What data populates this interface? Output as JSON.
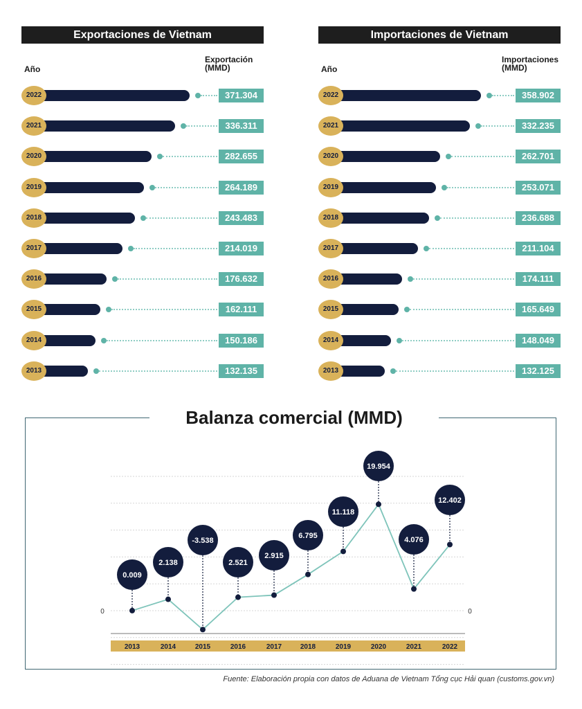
{
  "colors": {
    "navy": "#131d3d",
    "gold": "#d9b25a",
    "teal": "#5fb3a7",
    "dark_header": "#1e1e1e"
  },
  "exports_panel": {
    "title": "Exportaciones de Vietnam",
    "year_col": "Año",
    "value_col_line1": "Exportación",
    "value_col_line2": "(MMD)"
  },
  "imports_panel": {
    "title": "Importaciones de Vietnam",
    "year_col": "Año",
    "value_col_line1": "Importaciones",
    "value_col_line2": "(MMD)"
  },
  "balance_panel": {
    "title": "Balanza comercial (MMD)",
    "zero_label_left": "0",
    "zero_label_right": "0"
  },
  "source": "Fuente: Elaboración propia con datos de Aduana de Vietnam Tổng cục Hải quan (customs.gov.vn)",
  "chart_data": [
    {
      "type": "bar",
      "orientation": "horizontal",
      "title": "Exportaciones de Vietnam",
      "categories": [
        "2022",
        "2021",
        "2020",
        "2019",
        "2018",
        "2017",
        "2016",
        "2015",
        "2014",
        "2013"
      ],
      "values": [
        371.304,
        336.311,
        282.655,
        264.189,
        243.483,
        214.019,
        176.632,
        162.111,
        150.186,
        132.135
      ],
      "labels": [
        "371.304",
        "336.311",
        "282.655",
        "264.189",
        "243.483",
        "214.019",
        "176.632",
        "162.111",
        "150.186",
        "132.135"
      ],
      "xlabel": "Exportación (MMD)",
      "ylabel": "Año"
    },
    {
      "type": "bar",
      "orientation": "horizontal",
      "title": "Importaciones de Vietnam",
      "categories": [
        "2022",
        "2021",
        "2020",
        "2019",
        "2018",
        "2017",
        "2016",
        "2015",
        "2014",
        "2013"
      ],
      "values": [
        358.902,
        332.235,
        262.701,
        253.071,
        236.688,
        211.104,
        174.111,
        165.649,
        148.049,
        132.125
      ],
      "labels": [
        "358.902",
        "332.235",
        "262.701",
        "253.071",
        "236.688",
        "211.104",
        "174.111",
        "165.649",
        "148.049",
        "132.125"
      ],
      "xlabel": "Importaciones (MMD)",
      "ylabel": "Año"
    },
    {
      "type": "line",
      "title": "Balanza comercial (MMD)",
      "x": [
        "2013",
        "2014",
        "2015",
        "2016",
        "2017",
        "2018",
        "2019",
        "2020",
        "2021",
        "2022"
      ],
      "values": [
        0.009,
        2.138,
        -3.538,
        2.521,
        2.915,
        6.795,
        11.118,
        19.954,
        4.076,
        12.402
      ],
      "labels": [
        "0.009",
        "2.138",
        "-3.538",
        "2.521",
        "2.915",
        "6.795",
        "11.118",
        "19.954",
        "4.076",
        "12.402"
      ],
      "ylim": [
        -4,
        22
      ],
      "grid": true
    }
  ]
}
